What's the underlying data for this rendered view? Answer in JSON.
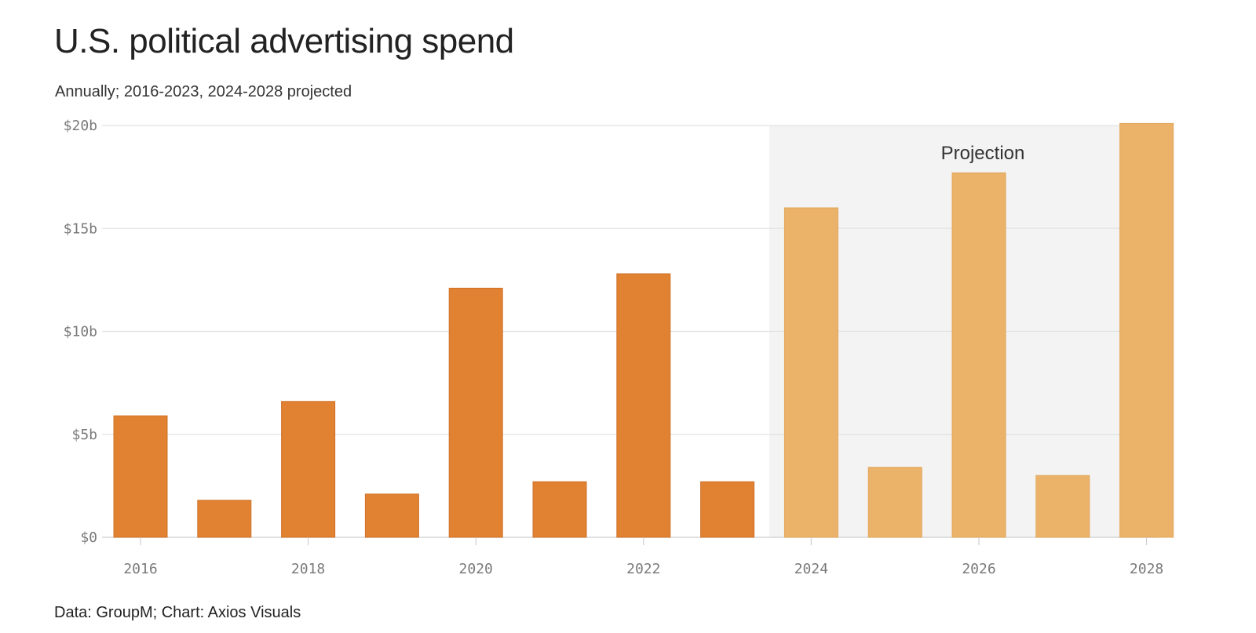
{
  "title": "U.S. political advertising spend",
  "subtitle": "Annually; 2016-2023, 2024-2028 projected",
  "footer": "Data: GroupM; Chart: Axios Visuals",
  "chart_data": {
    "type": "bar",
    "title": "U.S. political advertising spend",
    "subtitle": "Annually; 2016-2023, 2024-2028 projected",
    "xlabel": "",
    "ylabel": "",
    "categories": [
      "2016",
      "2017",
      "2018",
      "2019",
      "2020",
      "2021",
      "2022",
      "2023",
      "2024",
      "2025",
      "2026",
      "2027",
      "2028"
    ],
    "values": [
      5.9,
      1.8,
      6.6,
      2.1,
      12.1,
      2.7,
      12.8,
      2.7,
      16.0,
      3.4,
      17.7,
      3.0,
      20.1
    ],
    "projected": [
      false,
      false,
      false,
      false,
      false,
      false,
      false,
      false,
      true,
      true,
      true,
      true,
      true
    ],
    "x_tick_labels": [
      "2016",
      "2018",
      "2020",
      "2022",
      "2024",
      "2026",
      "2028"
    ],
    "y_ticks": [
      0,
      5,
      10,
      15,
      20
    ],
    "y_tick_labels": [
      "$0",
      "$5b",
      "$10b",
      "$15b",
      "$20b"
    ],
    "ylim": [
      0,
      20
    ],
    "unit": "billion USD",
    "grid": true,
    "annotations": [
      {
        "text": "Projection",
        "region": "2024-2028"
      }
    ],
    "colors": {
      "actual": "#e08232",
      "projected": "#ebb26a",
      "projection_band": "#f3f3f3",
      "grid": "#e2e2e2"
    }
  }
}
